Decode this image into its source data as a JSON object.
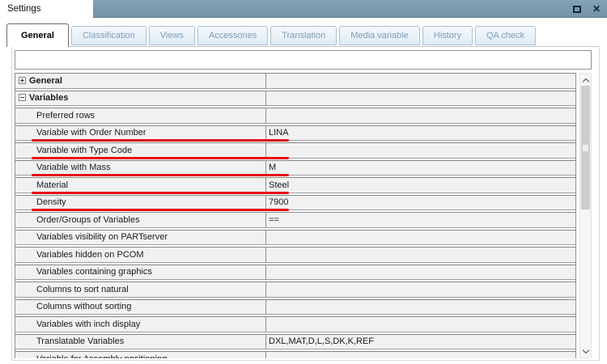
{
  "window": {
    "title": "Settings",
    "maximize_label": "maximize",
    "close_glyph": "✕"
  },
  "tabs": [
    {
      "label": "General",
      "active": true
    },
    {
      "label": "Classification",
      "active": false
    },
    {
      "label": "Views",
      "active": false
    },
    {
      "label": "Accessories",
      "active": false
    },
    {
      "label": "Translation",
      "active": false
    },
    {
      "label": "Media variable",
      "active": false
    },
    {
      "label": "History",
      "active": false
    },
    {
      "label": "QA check",
      "active": false
    }
  ],
  "filter_input": {
    "value": "",
    "placeholder": ""
  },
  "table": {
    "rows": [
      {
        "label": "General",
        "type": "group",
        "expanded": false,
        "value": "",
        "underlined": false
      },
      {
        "label": "Variables",
        "type": "group",
        "expanded": true,
        "value": "",
        "underlined": false
      },
      {
        "label": "Preferred rows",
        "type": "item",
        "value": "",
        "underlined": false
      },
      {
        "label": "Variable with Order Number",
        "type": "item",
        "value": "LINA",
        "underlined": true
      },
      {
        "label": "Variable with Type Code",
        "type": "item",
        "value": "",
        "underlined": true
      },
      {
        "label": "Variable with Mass",
        "type": "item",
        "value": "M",
        "underlined": true
      },
      {
        "label": "Material",
        "type": "item",
        "value": "Steel",
        "underlined": true
      },
      {
        "label": "Density",
        "type": "item",
        "value": "7900",
        "underlined": true
      },
      {
        "label": "Order/Groups of Variables",
        "type": "item",
        "value": "==",
        "underlined": false
      },
      {
        "label": "Variables visibility on PARTserver",
        "type": "item",
        "value": "",
        "underlined": false
      },
      {
        "label": "Variables hidden on PCOM",
        "type": "item",
        "value": "",
        "underlined": false
      },
      {
        "label": "Variables containing graphics",
        "type": "item",
        "value": "",
        "underlined": false
      },
      {
        "label": "Columns to sort natural",
        "type": "item",
        "value": "",
        "underlined": false
      },
      {
        "label": "Columns without sorting",
        "type": "item",
        "value": "",
        "underlined": false
      },
      {
        "label": "Variables with inch display",
        "type": "item",
        "value": "",
        "underlined": false
      },
      {
        "label": "Translatable Variables",
        "type": "item",
        "value": "DXL,MAT,D,L,S,DK,K,REF",
        "underlined": false
      },
      {
        "label": "Variable for Assembly positioning",
        "type": "item",
        "value": "",
        "underlined": false
      }
    ]
  },
  "annotations": {
    "underline_color": "#e30b0b"
  },
  "colors": {
    "titlebar_blue": "#7d9bae",
    "tab_inactive_bg": "#e9f1f9",
    "tab_inactive_text": "#7e9db6",
    "active_tab_text": "#000000",
    "row_bg": "#f1f1f1",
    "row_border": "#8f8f8f"
  }
}
